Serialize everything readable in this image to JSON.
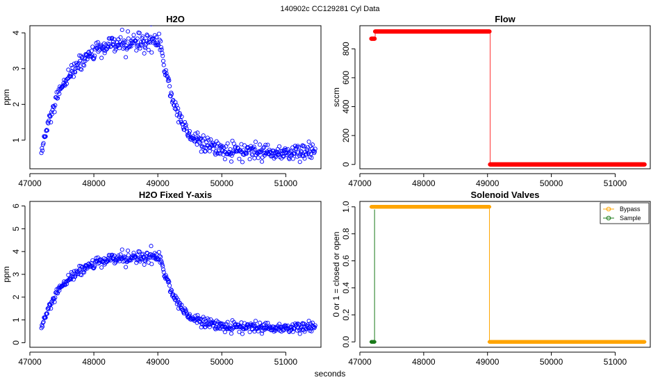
{
  "figure": {
    "suptitle": "140902c    CC129281    Cyl Data",
    "xlabel": "seconds"
  },
  "chart_data": [
    {
      "id": "h2o",
      "type": "scatter",
      "title": "H2O",
      "xlabel": "",
      "ylabel": "ppm",
      "xlim": [
        47000,
        51550
      ],
      "ylim": [
        0.2,
        4.2
      ],
      "xticks": [
        47000,
        48000,
        49000,
        50000,
        51000
      ],
      "yticks": [
        1,
        2,
        3,
        4
      ],
      "ytick_rotate": true,
      "marker": "open-circle",
      "color": "#0000ff",
      "profile": {
        "x_start": 47180,
        "x_end": 51460,
        "rise_end_x": 49040,
        "start_value": 0.65,
        "plateau_value": 3.8,
        "rise_time_constant_s": 380,
        "decay_time_constant_s": 260,
        "final_value": 0.65,
        "noise": 0.15,
        "n_points": 520
      }
    },
    {
      "id": "flow",
      "type": "scatter",
      "title": "Flow",
      "xlabel": "",
      "ylabel": "sccm",
      "xlim": [
        47000,
        51550
      ],
      "ylim": [
        -30,
        960
      ],
      "xticks": [
        47000,
        48000,
        49000,
        50000,
        51000
      ],
      "yticks": [
        0,
        200,
        400,
        600,
        800
      ],
      "ytick_rotate": true,
      "marker": "filled-circle",
      "color": "#ff0000",
      "segments": [
        {
          "x": [
            47180,
            47230
          ],
          "y": 870
        },
        {
          "x": [
            47240,
            49030
          ],
          "y": 920
        },
        {
          "x": [
            49040,
            51460
          ],
          "y": 0
        }
      ]
    },
    {
      "id": "h2o-fixed",
      "type": "scatter",
      "title": "H2O Fixed Y-axis",
      "xlabel": "",
      "ylabel": "ppm",
      "xlim": [
        47000,
        51550
      ],
      "ylim": [
        -0.2,
        6.2
      ],
      "xticks": [
        47000,
        48000,
        49000,
        50000,
        51000
      ],
      "yticks": [
        0,
        1,
        2,
        3,
        4,
        5,
        6
      ],
      "ytick_rotate": true,
      "marker": "open-circle",
      "color": "#0000ff",
      "profile": {
        "x_start": 47180,
        "x_end": 51460,
        "rise_end_x": 49040,
        "start_value": 0.65,
        "plateau_value": 3.8,
        "rise_time_constant_s": 380,
        "decay_time_constant_s": 260,
        "final_value": 0.65,
        "noise": 0.15,
        "n_points": 520
      }
    },
    {
      "id": "valves",
      "type": "line",
      "title": "Solenoid Valves",
      "xlabel": "",
      "ylabel": "0 or 1 = closed or open",
      "xlim": [
        47000,
        51550
      ],
      "ylim": [
        -0.04,
        1.04
      ],
      "xticks": [
        47000,
        48000,
        49000,
        50000,
        51000
      ],
      "yticks": [
        0.0,
        0.2,
        0.4,
        0.6,
        0.8,
        1.0
      ],
      "ytick_labels": [
        "0.0",
        "0.2",
        "0.4",
        "0.6",
        "0.8",
        "1.0"
      ],
      "ytick_rotate": true,
      "legend": {
        "position": "top-right",
        "entries": [
          "Bypass",
          "Sample"
        ]
      },
      "series": [
        {
          "name": "Bypass",
          "color": "#ffa500",
          "steps": [
            {
              "x": [
                47180,
                47230
              ],
              "y": 1
            },
            {
              "x": [
                47230,
                49030
              ],
              "y": 1
            },
            {
              "x": [
                49030,
                51460
              ],
              "y": 0
            }
          ]
        },
        {
          "name": "Sample",
          "color": "#1a7a1a",
          "steps": [
            {
              "x": [
                47180,
                47230
              ],
              "y": 0
            }
          ],
          "spike": {
            "x": 47230,
            "y": [
              0,
              0.98
            ]
          }
        }
      ]
    }
  ]
}
